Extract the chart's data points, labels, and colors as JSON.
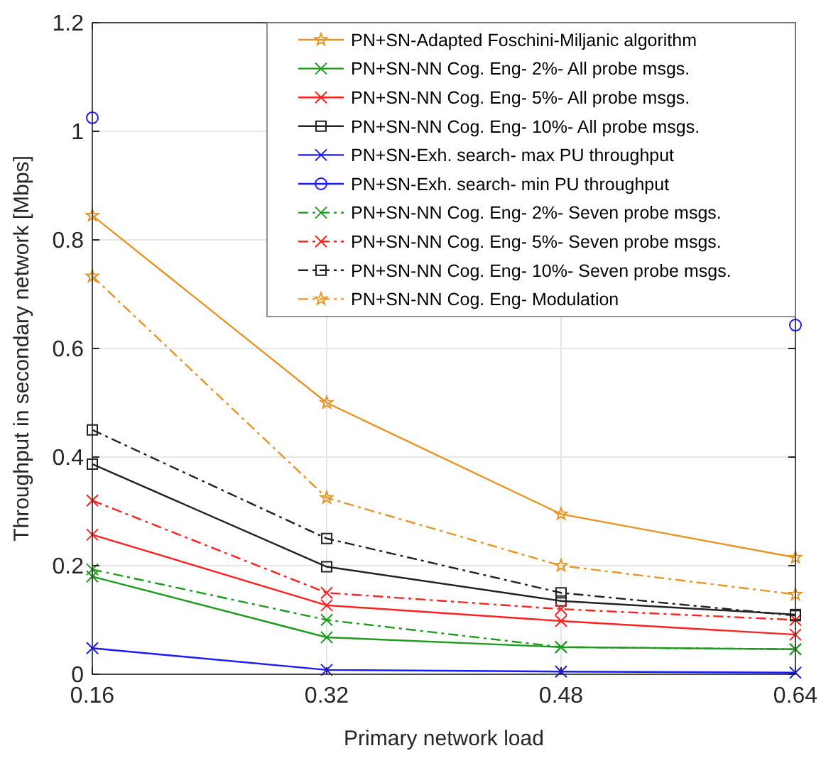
{
  "chart_data": {
    "type": "line",
    "xlabel": "Primary network load",
    "ylabel": "Throughput in secondary network [Mbps]",
    "x": [
      0.16,
      0.32,
      0.48,
      0.64
    ],
    "xlim": [
      0.16,
      0.64
    ],
    "xticks": [
      0.16,
      0.32,
      0.48,
      0.64
    ],
    "ylim": [
      0,
      1.2
    ],
    "yticks": [
      0,
      0.2,
      0.4,
      0.6,
      0.8,
      1,
      1.2
    ],
    "grid": true,
    "legend": "top right",
    "series": [
      {
        "name": "PN+SN-Adapted Foschini-Miljanic algorithm",
        "color": "#e69525",
        "values": [
          0.845,
          0.5,
          0.295,
          0.215
        ],
        "marker": "star",
        "line_style": "solid"
      },
      {
        "name": "PN+SN-NN Cog. Eng- 2%- All probe msgs.",
        "color": "#1e9a1e",
        "values": [
          0.18,
          0.068,
          0.05,
          0.046
        ],
        "marker": "cross",
        "line_style": "solid"
      },
      {
        "name": "PN+SN-NN Cog. Eng- 5%- All probe msgs.",
        "color": "#ff2020",
        "values": [
          0.257,
          0.127,
          0.098,
          0.073
        ],
        "marker": "cross",
        "line_style": "solid"
      },
      {
        "name": "PN+SN-NN Cog. Eng- 10%- All probe msgs.",
        "color": "#222222",
        "values": [
          0.387,
          0.198,
          0.135,
          0.11
        ],
        "marker": "square",
        "line_style": "solid"
      },
      {
        "name": "PN+SN-Exh. search- max PU throughput",
        "color": "#1a1aff",
        "values": [
          0.048,
          0.008,
          0.005,
          0.003
        ],
        "marker": "cross",
        "line_style": "solid"
      },
      {
        "name": "PN+SN-Exh. search- min PU throughput",
        "color": "#1a1aff",
        "values": [
          1.025,
          null,
          null,
          0.643
        ],
        "marker": "circle",
        "line_style": "solid"
      },
      {
        "name": "PN+SN-NN Cog. Eng- 2%- Seven probe msgs.",
        "color": "#1e9a1e",
        "values": [
          0.193,
          0.1,
          0.05,
          0.046
        ],
        "marker": "cross",
        "line_style": "dashed"
      },
      {
        "name": "PN+SN-NN Cog. Eng- 5%- Seven probe msgs.",
        "color": "#ff2020",
        "values": [
          0.32,
          0.15,
          0.12,
          0.1
        ],
        "marker": "cross",
        "line_style": "dashed"
      },
      {
        "name": "PN+SN-NN Cog. Eng- 10%- Seven probe msgs.",
        "color": "#222222",
        "values": [
          0.45,
          0.25,
          0.15,
          0.108
        ],
        "marker": "square",
        "line_style": "dashed"
      },
      {
        "name": "PN+SN-NN Cog. Eng- Modulation",
        "color": "#e69525",
        "values": [
          0.733,
          0.325,
          0.2,
          0.147
        ],
        "marker": "star",
        "line_style": "dashed"
      }
    ]
  }
}
